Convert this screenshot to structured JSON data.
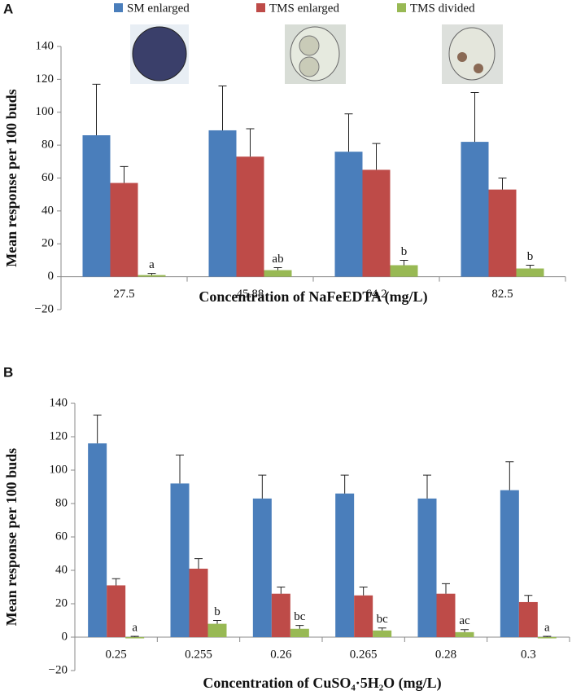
{
  "chart_data": [
    {
      "type": "bar",
      "panel": "A",
      "x_label": "Concentration of NaFeEDTA (mg/L)",
      "y_label": "Mean response per 100 buds",
      "categories": [
        "27.5",
        "45.88",
        "64.2",
        "82.5"
      ],
      "series": [
        {
          "name": "SM enlarged",
          "color": "#4a7ebb",
          "values": [
            86,
            89,
            76,
            82
          ],
          "errors": [
            31,
            27,
            23,
            30
          ]
        },
        {
          "name": "TMS enlarged",
          "color": "#be4b48",
          "values": [
            57,
            73,
            65,
            53
          ],
          "errors": [
            10,
            17,
            16,
            7
          ]
        },
        {
          "name": "TMS divided",
          "color": "#98b954",
          "values": [
            1,
            4,
            7,
            5
          ],
          "errors": [
            1,
            1.5,
            3,
            2
          ]
        }
      ],
      "letters": [
        "a",
        "ab",
        "b",
        "b"
      ],
      "ylim": [
        -20,
        140
      ],
      "yticks": [
        {
          "value": -20,
          "label": "−20"
        },
        0,
        20,
        40,
        60,
        80,
        100,
        120,
        140
      ]
    },
    {
      "type": "bar",
      "panel": "B",
      "x_label": "Concentration of CuSO₄·5H₂O (mg/L)",
      "y_label": "Mean response per 100 buds",
      "categories": [
        "0.25",
        "0.255",
        "0.26",
        "0.265",
        "0.28",
        "0.3"
      ],
      "series": [
        {
          "name": "SM enlarged",
          "color": "#4a7ebb",
          "values": [
            116,
            92,
            83,
            86,
            83,
            88
          ],
          "errors": [
            17,
            17,
            14,
            11,
            14,
            17
          ]
        },
        {
          "name": "TMS enlarged",
          "color": "#be4b48",
          "values": [
            31,
            41,
            26,
            25,
            26,
            21
          ],
          "errors": [
            4,
            6,
            4,
            5,
            6,
            4
          ]
        },
        {
          "name": "TMS divided",
          "color": "#98b954",
          "values": [
            0,
            8,
            5,
            4,
            3,
            0
          ],
          "errors": [
            0.5,
            2,
            2,
            1.5,
            1.5,
            0.5
          ]
        }
      ],
      "letters": [
        "a",
        "b",
        "bc",
        "bc",
        "ac",
        "a"
      ],
      "ylim": [
        -20,
        140
      ],
      "yticks": [
        {
          "value": -20,
          "label": "−20"
        },
        0,
        20,
        40,
        60,
        80,
        100,
        120,
        140
      ]
    }
  ]
}
